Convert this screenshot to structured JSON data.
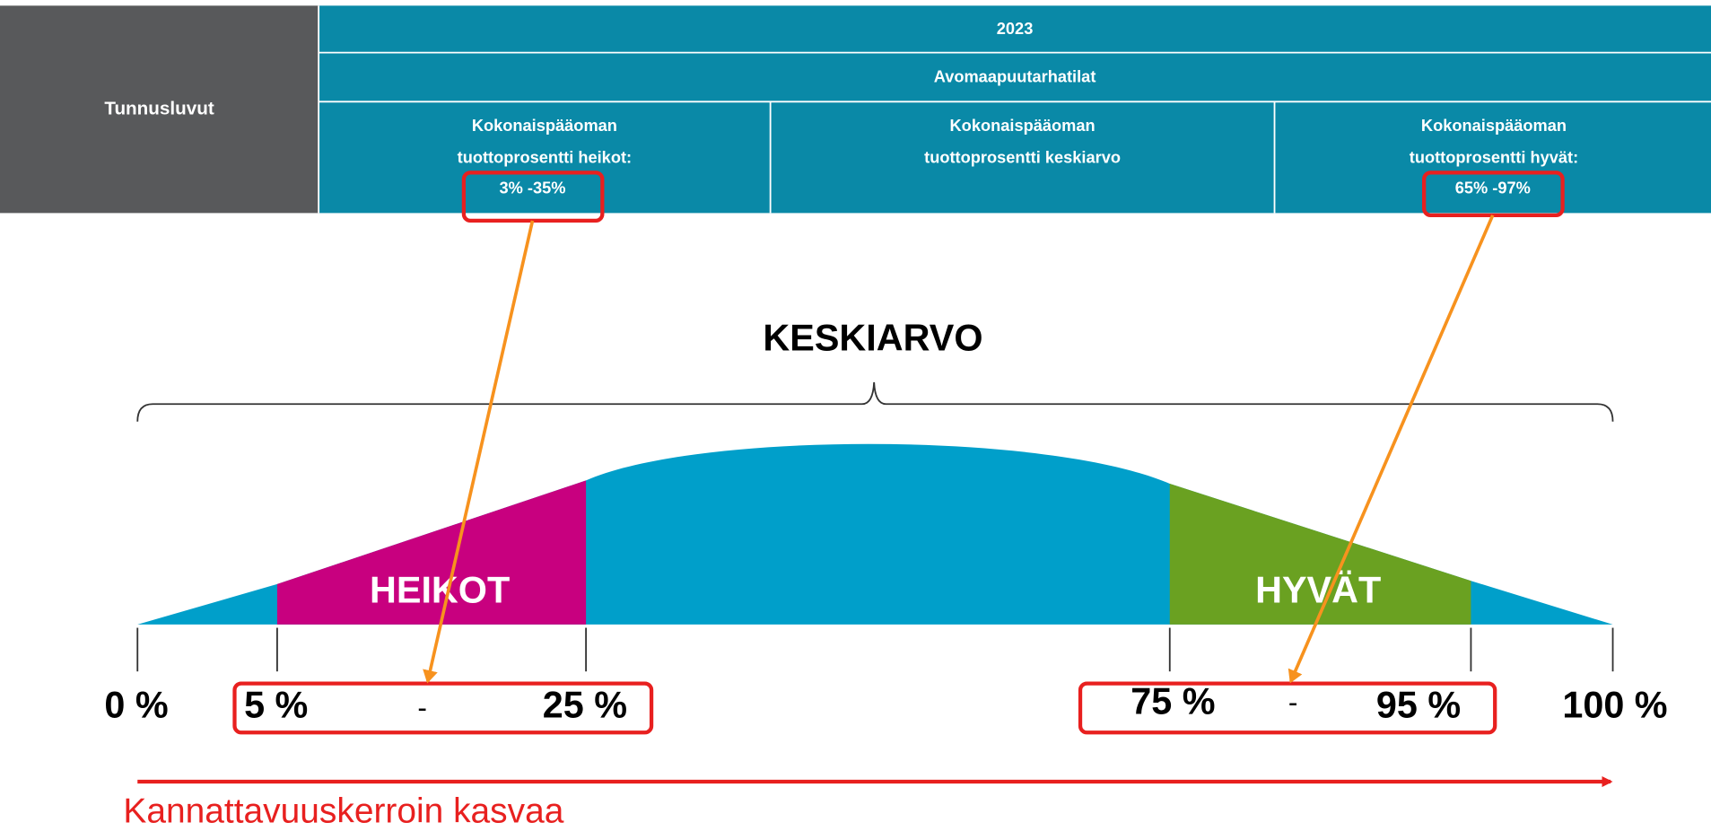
{
  "table": {
    "row_header": "Tunnusluvut",
    "year": "2023",
    "group": "Avomaapuutarhatilat",
    "columns": [
      {
        "lines": [
          "Kokonaispääoman",
          "tuottoprosentti heikot:"
        ],
        "range": "3% -35%"
      },
      {
        "lines": [
          "Kokonaispääoman",
          "tuottoprosentti keskiarvo"
        ]
      },
      {
        "lines": [
          "Kokonaispääoman",
          "tuottoprosentti hyvät:"
        ],
        "range": "65% -97%"
      }
    ]
  },
  "diagram": {
    "title": "KESKIARVO",
    "regions": [
      "HEIKOT",
      "HYVÄT"
    ],
    "axis_labels": [
      "0 %",
      "5 %",
      "25 %",
      "75 %",
      "95 %",
      "100 %"
    ],
    "separators": [
      "-",
      "-"
    ],
    "arrow_label": "Kannattavuuskerroin kasvaa"
  }
}
